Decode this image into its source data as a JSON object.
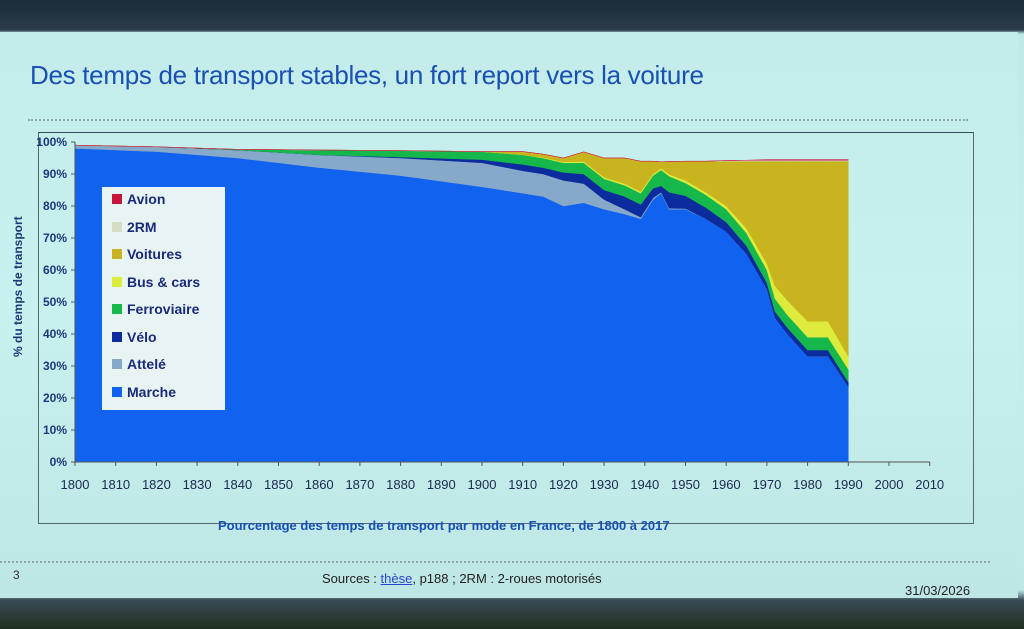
{
  "slide": {
    "title": "Des temps de transport stables, un fort report vers la voiture",
    "caption": "Pourcentage des temps de transport par mode en France, de 1800 à 2017",
    "page_number": "3",
    "sources_prefix": "Sources : ",
    "sources_link": "thèse",
    "sources_suffix": ", p188 ; 2RM : 2-roues motorisés",
    "date": "31/03/2026"
  },
  "chart_data": {
    "type": "area",
    "stacked": true,
    "title": "Pourcentage des temps de transport par mode en France, de 1800 à 2017",
    "xlabel": "",
    "ylabel": "% du temps de transport",
    "ylim": [
      0,
      100
    ],
    "xlim": [
      1800,
      1990
    ],
    "y_ticks": [
      "0%",
      "10%",
      "20%",
      "30%",
      "40%",
      "50%",
      "60%",
      "70%",
      "80%",
      "90%",
      "100%"
    ],
    "x_ticks": [
      "1800",
      "1810",
      "1820",
      "1830",
      "1840",
      "1850",
      "1860",
      "1870",
      "1880",
      "1890",
      "1900",
      "1910",
      "1920",
      "1930",
      "1940",
      "1950",
      "1960",
      "1970",
      "1980",
      "1990",
      "2000",
      "2010"
    ],
    "legend_position": "left",
    "x": [
      1800,
      1820,
      1840,
      1860,
      1880,
      1900,
      1910,
      1915,
      1920,
      1925,
      1930,
      1935,
      1939,
      1942,
      1944,
      1946,
      1950,
      1955,
      1960,
      1965,
      1970,
      1972,
      1975,
      1980,
      1985,
      1990
    ],
    "series": [
      {
        "name": "Marche",
        "color": "#1262f0",
        "values": [
          98,
          97,
          95,
          92,
          89.5,
          86,
          84,
          83,
          80,
          81,
          79,
          77.5,
          76,
          82,
          84,
          79,
          79,
          76,
          72,
          65,
          54,
          45,
          40,
          33,
          33,
          23.5
        ]
      },
      {
        "name": "Attelé",
        "color": "#86a9c9",
        "values": [
          1,
          1.5,
          2.5,
          4,
          5.5,
          7.5,
          7,
          7,
          8,
          6,
          3,
          1.5,
          0.5,
          0.5,
          0.3,
          0.3,
          0.2,
          0,
          0,
          0,
          0,
          0,
          0,
          0,
          0,
          0
        ]
      },
      {
        "name": "Vélo",
        "color": "#0c2c9e",
        "values": [
          0,
          0,
          0,
          0,
          0.3,
          1,
          2,
          2,
          2.5,
          3,
          3,
          4,
          4,
          3,
          2,
          5,
          4,
          3.5,
          3,
          2.5,
          2,
          2,
          2,
          2,
          2,
          1.5
        ]
      },
      {
        "name": "Ferroviaire",
        "color": "#16b84c",
        "values": [
          0,
          0,
          0.2,
          1.5,
          2,
          2.5,
          3,
          3,
          3,
          3.5,
          3.5,
          3.5,
          3.5,
          4,
          5,
          5,
          4,
          4,
          4,
          4,
          4,
          4,
          4,
          4,
          4,
          4
        ]
      },
      {
        "name": "Bus & cars",
        "color": "#dceb3c",
        "values": [
          0,
          0,
          0,
          0,
          0,
          0,
          0,
          0.2,
          0.3,
          0.4,
          0.5,
          0.5,
          0.5,
          0.5,
          0.5,
          0.6,
          0.8,
          0.8,
          1,
          1.5,
          2,
          4,
          4.5,
          5,
          5,
          4
        ]
      },
      {
        "name": "Voitures",
        "color": "#c8b41e",
        "values": [
          0,
          0,
          0,
          0,
          0,
          0,
          1,
          1,
          1.2,
          3,
          6,
          8,
          9.5,
          4,
          2,
          4,
          6,
          9.7,
          14,
          21,
          32,
          39,
          43.5,
          50,
          50,
          61
        ]
      },
      {
        "name": "2RM",
        "color": "#d6dcc4",
        "values": [
          0,
          0,
          0,
          0,
          0,
          0,
          0,
          0,
          0,
          0,
          0,
          0,
          0,
          0,
          0,
          0,
          0,
          0,
          0.2,
          0.3,
          0.3,
          0.3,
          0.3,
          0.3,
          0.3,
          0.3
        ]
      },
      {
        "name": "Avion",
        "color": "#c8143c",
        "values": [
          0,
          0,
          0,
          0,
          0,
          0,
          0,
          0,
          0,
          0,
          0,
          0,
          0,
          0,
          0,
          0,
          0,
          0,
          0,
          0,
          0.2,
          0.2,
          0.2,
          0.2,
          0.2,
          0.2
        ]
      }
    ]
  }
}
